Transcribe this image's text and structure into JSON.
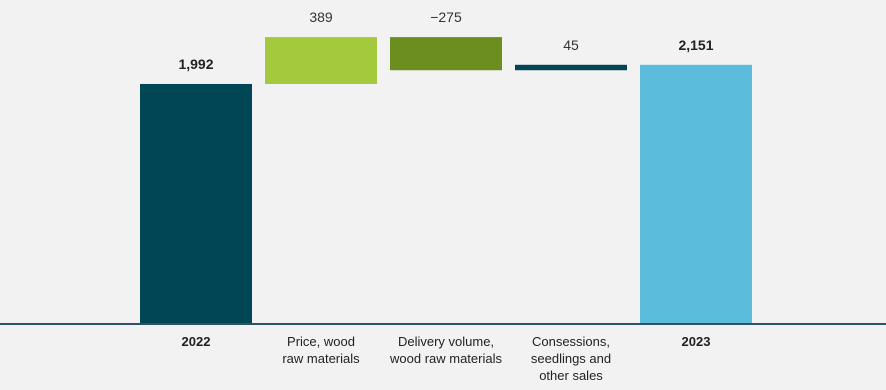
{
  "chart_data": {
    "type": "waterfall",
    "title": "",
    "xlabel": "",
    "ylabel": "",
    "ylim": [
      0,
      2500
    ],
    "grid": false,
    "legend": "none",
    "categories": [
      [
        "2022"
      ],
      [
        "Price, wood",
        "raw materials"
      ],
      [
        "Delivery volume,",
        "wood raw materials"
      ],
      [
        "Consessions,",
        "seedlings and",
        "other sales"
      ],
      [
        "2023"
      ]
    ],
    "values": [
      1992,
      389,
      -275,
      45,
      2151
    ],
    "value_labels": [
      "1,992",
      "389",
      "−275",
      "45",
      "2,151"
    ],
    "bar_kinds": [
      "total",
      "delta",
      "delta",
      "delta",
      "total"
    ],
    "bold": [
      true,
      false,
      false,
      false,
      true
    ],
    "colors": [
      "#004655",
      "#a5c93d",
      "#6b8e1e",
      "#004655",
      "#5bbcdb"
    ],
    "axis_color": "#2b5563"
  }
}
